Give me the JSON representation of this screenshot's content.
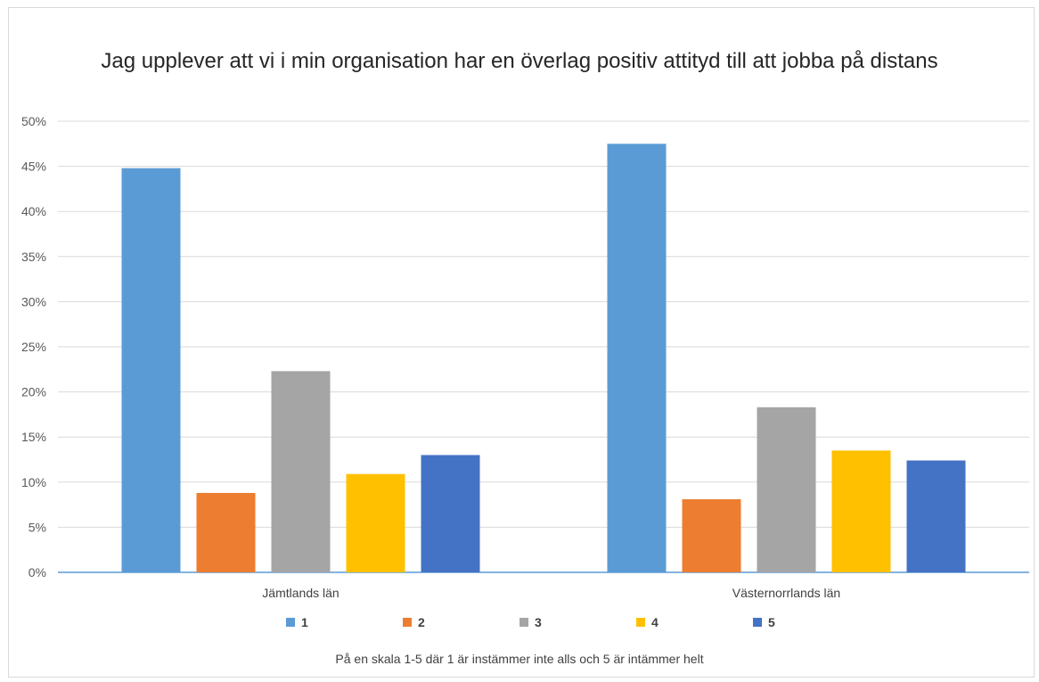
{
  "chart_data": {
    "type": "bar",
    "title": "Jag upplever att vi i min organisation har en överlag positiv attityd till att jobba på distans",
    "categories": [
      "Jämtlands län",
      "Västernorrlands län"
    ],
    "series": [
      {
        "name": "1",
        "color": "#5b9bd5",
        "values": [
          44.8,
          47.5
        ]
      },
      {
        "name": "2",
        "color": "#ed7d31",
        "values": [
          8.8,
          8.1
        ]
      },
      {
        "name": "3",
        "color": "#a5a5a5",
        "values": [
          22.3,
          18.3
        ]
      },
      {
        "name": "4",
        "color": "#ffc000",
        "values": [
          10.9,
          13.5
        ]
      },
      {
        "name": "5",
        "color": "#4472c4",
        "values": [
          13.0,
          12.4
        ]
      }
    ],
    "ylim": [
      0,
      50
    ],
    "yticks": [
      0,
      5,
      10,
      15,
      20,
      25,
      30,
      35,
      40,
      45,
      50
    ],
    "ytick_suffix": "%",
    "grid": true,
    "legend_position": "bottom",
    "note": "På en skala 1-5 där 1 är instämmer inte alls och 5 är intämmer helt"
  }
}
